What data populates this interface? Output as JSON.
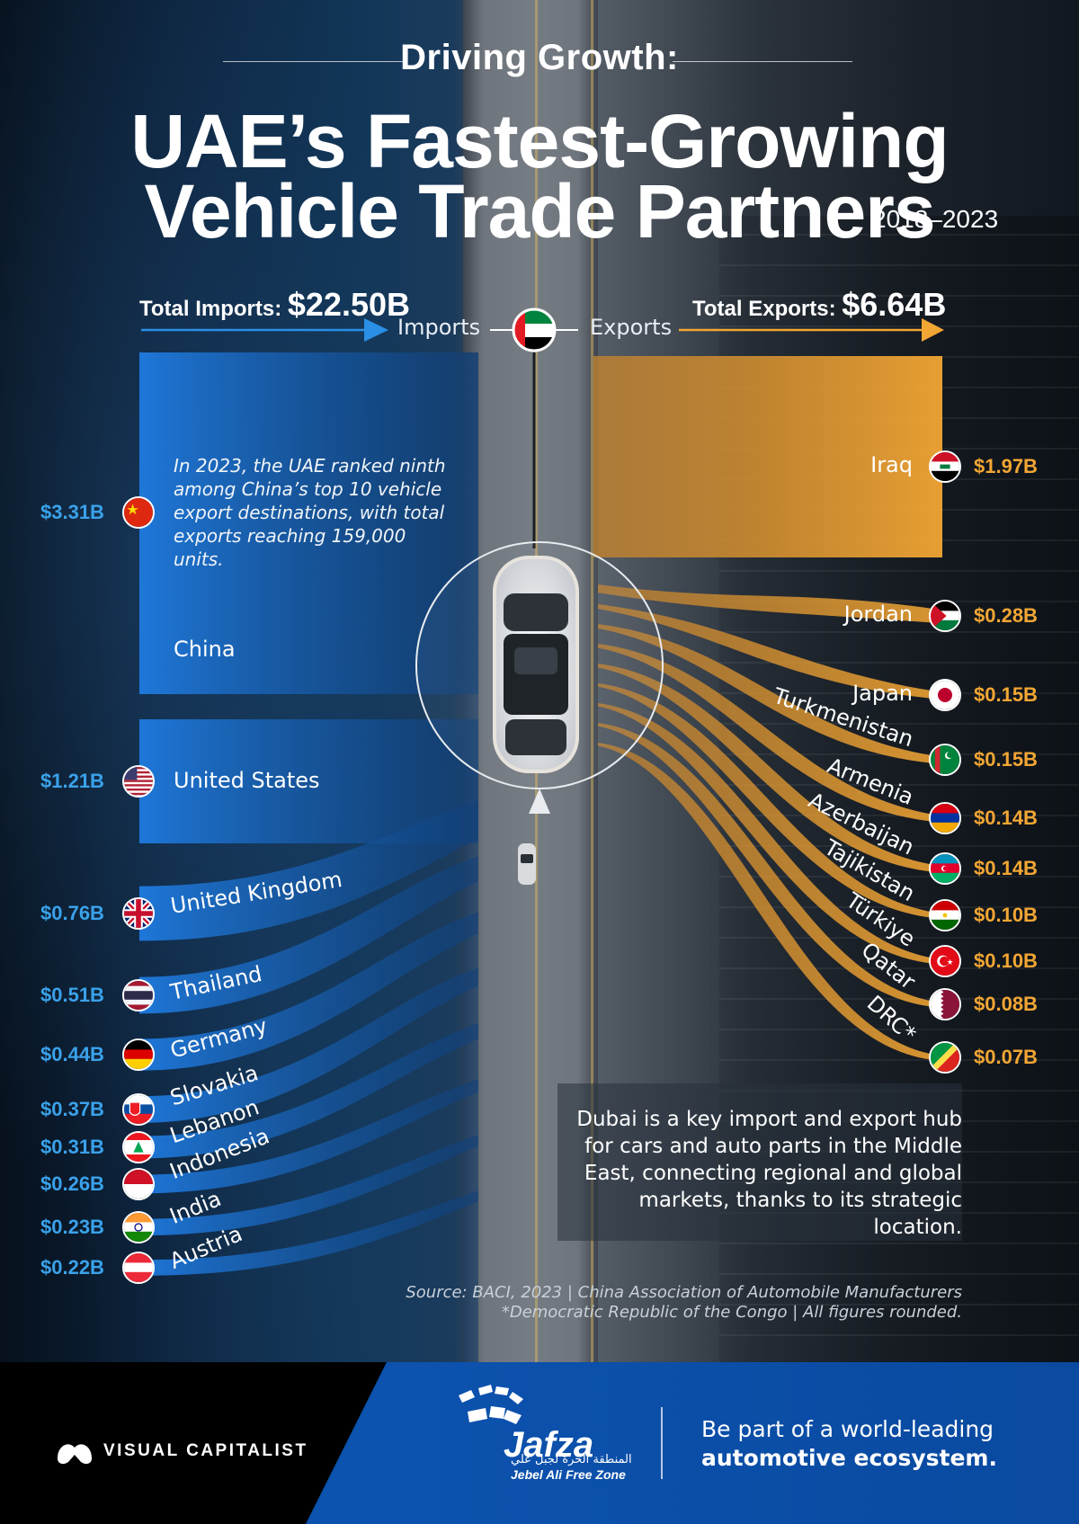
{
  "header": {
    "eyebrow": "Driving Growth:",
    "title_line1": "UAE’s Fastest-Growing",
    "title_line2": "Vehicle Trade Partners",
    "years": "2018–2023"
  },
  "totals": {
    "imports_label": "Total Imports:",
    "imports_value": "$22.50B",
    "exports_label": "Total Exports:",
    "exports_value": "$6.64B",
    "imports_dir": "Imports",
    "exports_dir": "Exports"
  },
  "chart_data": {
    "type": "bar",
    "title": "UAE’s Fastest-Growing Vehicle Trade Partners",
    "subtitle": "2018–2023",
    "series": [
      {
        "name": "Imports",
        "color": "#1e78d2",
        "categories": [
          "China",
          "United States",
          "United Kingdom",
          "Thailand",
          "Germany",
          "Slovakia",
          "Lebanon",
          "Indonesia",
          "India",
          "Austria"
        ],
        "values": [
          3.31,
          1.21,
          0.76,
          0.51,
          0.44,
          0.37,
          0.31,
          0.26,
          0.23,
          0.22
        ],
        "labels": [
          "$3.31B",
          "$1.21B",
          "$0.76B",
          "$0.51B",
          "$0.44B",
          "$0.37B",
          "$0.31B",
          "$0.26B",
          "$0.23B",
          "$0.22B"
        ]
      },
      {
        "name": "Exports",
        "color": "#f2a634",
        "categories": [
          "Iraq",
          "Jordan",
          "Japan",
          "Turkmenistan",
          "Armenia",
          "Azerbaijan",
          "Tajikistan",
          "Türkiye",
          "Qatar",
          "DRC*"
        ],
        "values": [
          1.97,
          0.28,
          0.15,
          0.15,
          0.14,
          0.14,
          0.1,
          0.1,
          0.08,
          0.07
        ],
        "labels": [
          "$1.97B",
          "$0.28B",
          "$0.15B",
          "$0.15B",
          "$0.14B",
          "$0.14B",
          "$0.10B",
          "$0.10B",
          "$0.08B",
          "$0.07B"
        ]
      }
    ]
  },
  "annotations": {
    "china_note": "In 2023, the UAE ranked ninth among China’s top 10 vehicle export destinations, with total exports reaching 159,000 units.",
    "hub_note": "Dubai is a key import and export hub for cars and auto parts in the Middle East, connecting regional and global markets, thanks to its strategic location.",
    "source": "Source: BACI, 2023 | China Association of Automobile Manufacturers",
    "footnote": "*Democratic Republic of the Congo | All figures rounded."
  },
  "footer": {
    "brand": "VISUAL CAPITALIST",
    "partner": "Jafza",
    "partner_arabic": "المنطقة الحرة لجبل علي",
    "partner_sub": "Jebel Ali Free Zone",
    "tagline_1": "Be part of a world-leading",
    "tagline_2": "automotive ecosystem."
  },
  "icons": [
    "uae-flag-icon",
    "car-icon",
    "visual-capitalist-logo-icon",
    "jafza-logo-icon"
  ]
}
